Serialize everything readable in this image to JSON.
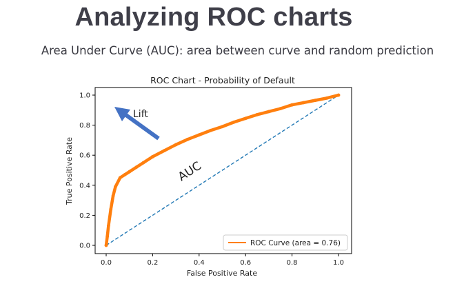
{
  "slide": {
    "title": "Analyzing ROC charts",
    "subtitle": "Area Under Curve (AUC): area between curve and random prediction"
  },
  "colors": {
    "title_text": "#3f3f49",
    "roc_curve": "#ff7f0e",
    "random_line": "#1f77b4",
    "arrow": "#4472c4"
  },
  "icons": {
    "lift_arrow": "arrow-up-left-icon"
  },
  "chart_data": {
    "type": "line",
    "title": "ROC Chart - Probability of Default",
    "xlabel": "False Positive Rate",
    "ylabel": "True Positive Rate",
    "xlim": [
      0,
      1
    ],
    "ylim": [
      0,
      1
    ],
    "xticks": [
      0.0,
      0.2,
      0.4,
      0.6,
      0.8,
      1.0
    ],
    "yticks": [
      0.0,
      0.2,
      0.4,
      0.6,
      0.8,
      1.0
    ],
    "xtick_labels": [
      "0.0",
      "0.2",
      "0.4",
      "0.6",
      "0.8",
      "1.0"
    ],
    "ytick_labels": [
      "0.0",
      "0.2",
      "0.4",
      "0.6",
      "0.8",
      "1.0"
    ],
    "grid": false,
    "legend_position": "bottom-right",
    "series": [
      {
        "name": "ROC Curve (area = 0.76)",
        "style": "solid",
        "x": [
          0.0,
          0.005,
          0.01,
          0.02,
          0.03,
          0.04,
          0.06,
          0.08,
          0.1,
          0.13,
          0.16,
          0.2,
          0.25,
          0.3,
          0.35,
          0.4,
          0.45,
          0.5,
          0.55,
          0.6,
          0.65,
          0.7,
          0.75,
          0.8,
          0.85,
          0.9,
          0.95,
          1.0
        ],
        "y": [
          0.0,
          0.06,
          0.13,
          0.24,
          0.33,
          0.39,
          0.45,
          0.47,
          0.49,
          0.52,
          0.55,
          0.59,
          0.63,
          0.67,
          0.705,
          0.735,
          0.765,
          0.79,
          0.82,
          0.845,
          0.87,
          0.89,
          0.91,
          0.935,
          0.95,
          0.965,
          0.98,
          1.0
        ]
      },
      {
        "name": "random",
        "style": "dashed",
        "x": [
          0.0,
          1.0
        ],
        "y": [
          0.0,
          1.0
        ]
      }
    ],
    "annotations": [
      {
        "text": "Lift"
      },
      {
        "text": "AUC"
      }
    ]
  }
}
